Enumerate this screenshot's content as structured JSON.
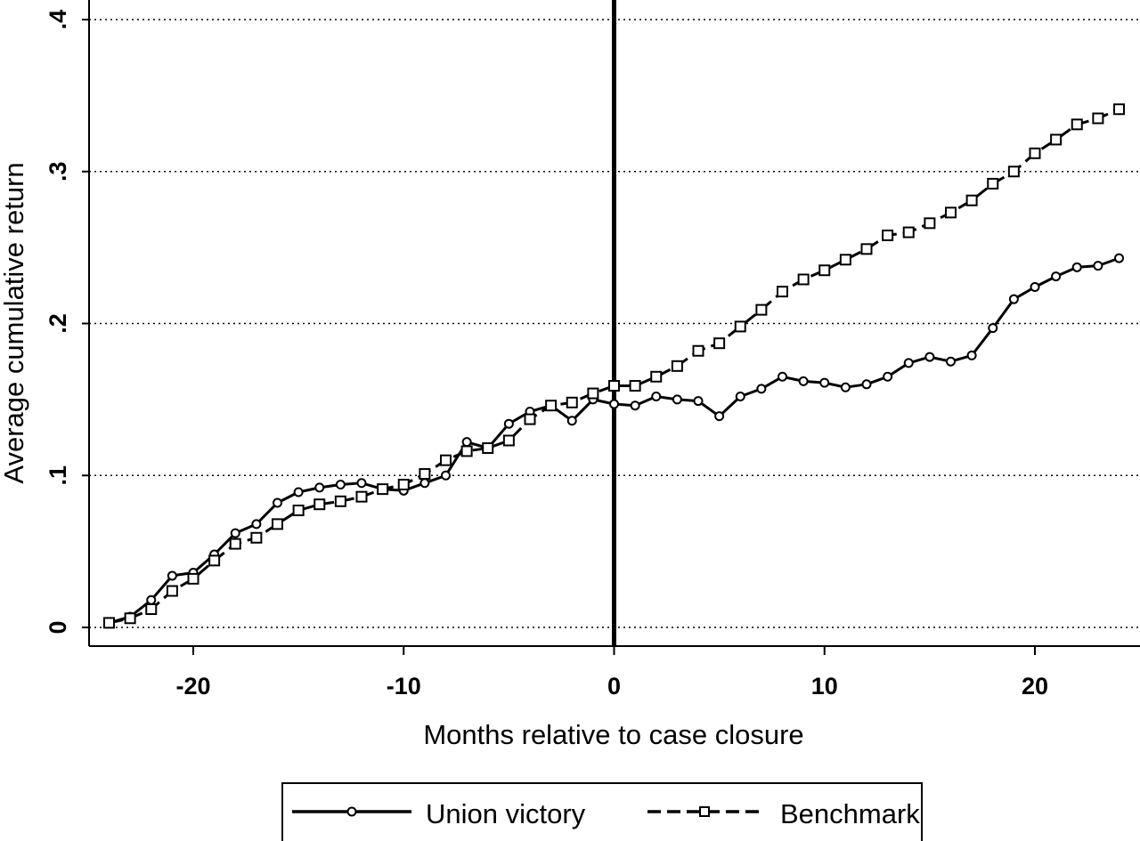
{
  "chart_data": {
    "type": "line",
    "xlabel": "Months relative to case closure",
    "ylabel": "Average cumulative return",
    "xlim": [
      -25,
      25
    ],
    "ylim": [
      -0.012,
      0.41
    ],
    "x_ticks": [
      -20,
      -10,
      0,
      10,
      20
    ],
    "x_tick_labels": [
      "-20",
      "-10",
      "0",
      "10",
      "20"
    ],
    "y_ticks": [
      0,
      0.1,
      0.2,
      0.3,
      0.4
    ],
    "y_tick_labels": [
      "0",
      ".1",
      ".2",
      ".3",
      ".4"
    ],
    "grid": "horizontal dotted",
    "reference_line_x": 0,
    "legend_position": "bottom",
    "x": [
      -24,
      -23,
      -22,
      -21,
      -20,
      -19,
      -18,
      -17,
      -16,
      -15,
      -14,
      -13,
      -12,
      -11,
      -10,
      -9,
      -8,
      -7,
      -6,
      -5,
      -4,
      -3,
      -2,
      -1,
      0,
      1,
      2,
      3,
      4,
      5,
      6,
      7,
      8,
      9,
      10,
      11,
      12,
      13,
      14,
      15,
      16,
      17,
      18,
      19,
      20,
      21,
      22,
      23,
      24
    ],
    "series": [
      {
        "name": "Union victory",
        "marker": "circle",
        "line": "solid",
        "color": "#000000",
        "values": [
          0.003,
          0.007,
          0.018,
          0.034,
          0.036,
          0.048,
          0.062,
          0.068,
          0.082,
          0.089,
          0.092,
          0.094,
          0.095,
          0.091,
          0.09,
          0.095,
          0.1,
          0.122,
          0.118,
          0.134,
          0.142,
          0.146,
          0.136,
          0.15,
          0.147,
          0.146,
          0.152,
          0.15,
          0.149,
          0.139,
          0.152,
          0.157,
          0.165,
          0.162,
          0.161,
          0.158,
          0.16,
          0.165,
          0.174,
          0.178,
          0.175,
          0.179,
          0.197,
          0.216,
          0.224,
          0.231,
          0.237,
          0.238,
          0.243
        ]
      },
      {
        "name": "Benchmark",
        "marker": "square",
        "line": "dashed",
        "color": "#000000",
        "values": [
          0.003,
          0.006,
          0.012,
          0.024,
          0.032,
          0.044,
          0.055,
          0.059,
          0.068,
          0.077,
          0.081,
          0.083,
          0.086,
          0.091,
          0.094,
          0.101,
          0.11,
          0.116,
          0.118,
          0.123,
          0.137,
          0.146,
          0.148,
          0.154,
          0.159,
          0.159,
          0.165,
          0.172,
          0.182,
          0.187,
          0.198,
          0.209,
          0.221,
          0.229,
          0.235,
          0.242,
          0.249,
          0.258,
          0.26,
          0.266,
          0.273,
          0.281,
          0.292,
          0.3,
          0.312,
          0.321,
          0.331,
          0.335,
          0.341
        ]
      }
    ]
  }
}
